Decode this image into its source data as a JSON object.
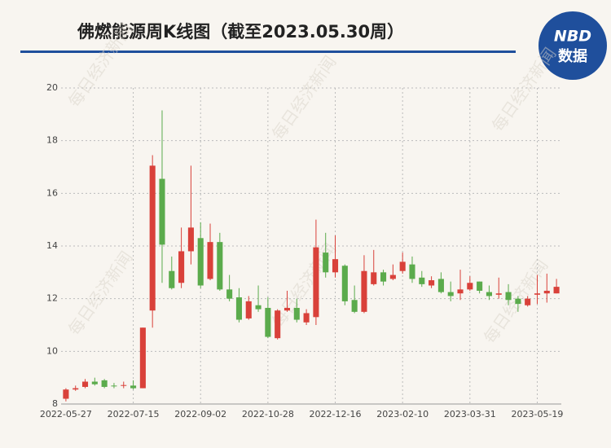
{
  "chart_data": {
    "type": "candlestick",
    "title": "佛燃能源周K线图（截至2023.05.30周）",
    "logo": {
      "top": "NBD",
      "bottom": "数据"
    },
    "watermark": "每日经济新闻",
    "categories": [
      "2022-05-27",
      null,
      null,
      null,
      null,
      null,
      null,
      "2022-07-15",
      null,
      null,
      null,
      null,
      null,
      null,
      "2022-09-02",
      null,
      null,
      null,
      null,
      null,
      null,
      "2022-10-28",
      null,
      null,
      null,
      null,
      null,
      null,
      "2022-12-16",
      null,
      null,
      null,
      null,
      null,
      null,
      "2023-02-10",
      null,
      null,
      null,
      null,
      null,
      null,
      "2023-03-31",
      null,
      null,
      null,
      null,
      null,
      null,
      "2023-05-19",
      null,
      null
    ],
    "open": [
      8.2,
      8.55,
      8.65,
      8.85,
      8.9,
      8.7,
      8.7,
      8.7,
      8.6,
      11.55,
      16.55,
      13.05,
      12.6,
      13.8,
      14.3,
      12.75,
      14.15,
      12.35,
      12.05,
      11.25,
      11.75,
      11.65,
      10.5,
      11.55,
      11.65,
      11.1,
      11.3,
      13.75,
      13.0,
      13.25,
      11.95,
      11.5,
      12.55,
      13.0,
      12.75,
      13.05,
      13.3,
      12.8,
      12.5,
      12.75,
      12.25,
      12.2,
      12.35,
      12.65,
      12.25,
      12.15,
      12.25,
      12.0,
      11.75,
      12.15,
      12.2,
      12.2
    ],
    "high": [
      8.6,
      8.7,
      8.95,
      9.0,
      8.95,
      8.8,
      8.85,
      8.9,
      10.9,
      17.45,
      19.15,
      13.6,
      14.7,
      17.05,
      14.9,
      14.85,
      14.5,
      12.9,
      12.4,
      12.1,
      12.5,
      12.05,
      11.6,
      12.3,
      12.0,
      11.6,
      15.0,
      14.5,
      14.4,
      13.3,
      12.5,
      13.65,
      13.85,
      13.1,
      13.3,
      13.75,
      13.6,
      13.05,
      12.85,
      13.0,
      12.65,
      13.1,
      12.85,
      12.65,
      12.5,
      12.8,
      12.55,
      12.1,
      12.1,
      12.9,
      12.95,
      12.75
    ],
    "low": [
      8.1,
      8.5,
      8.6,
      8.7,
      8.6,
      8.6,
      8.6,
      8.55,
      8.6,
      10.9,
      12.6,
      12.35,
      12.4,
      13.3,
      12.4,
      12.7,
      12.3,
      11.9,
      11.1,
      11.2,
      11.5,
      10.5,
      10.45,
      11.5,
      11.1,
      11.0,
      11.0,
      12.8,
      12.8,
      11.75,
      11.45,
      11.45,
      12.5,
      12.5,
      12.7,
      12.95,
      12.6,
      12.45,
      12.4,
      12.2,
      11.9,
      11.95,
      12.3,
      12.2,
      11.95,
      12.0,
      11.75,
      11.5,
      11.7,
      11.8,
      11.85,
      12.2
    ],
    "close": [
      8.55,
      8.6,
      8.85,
      8.75,
      8.65,
      8.68,
      8.72,
      8.6,
      10.9,
      17.05,
      14.05,
      12.4,
      13.8,
      14.7,
      12.5,
      14.15,
      12.35,
      12.0,
      11.2,
      11.9,
      11.6,
      10.55,
      11.55,
      11.65,
      11.2,
      11.45,
      13.95,
      13.0,
      13.5,
      11.9,
      11.5,
      13.05,
      13.0,
      12.65,
      12.9,
      13.4,
      12.75,
      12.55,
      12.7,
      12.25,
      12.1,
      12.35,
      12.6,
      12.3,
      12.1,
      12.2,
      11.95,
      11.8,
      12.0,
      12.2,
      12.3,
      12.45
    ],
    "up_color": "#d9413a",
    "down_color": "#5bab4c",
    "ylim": [
      8,
      20
    ],
    "yticks": [
      8,
      10,
      12,
      14,
      16,
      18,
      20
    ],
    "grid": true
  }
}
